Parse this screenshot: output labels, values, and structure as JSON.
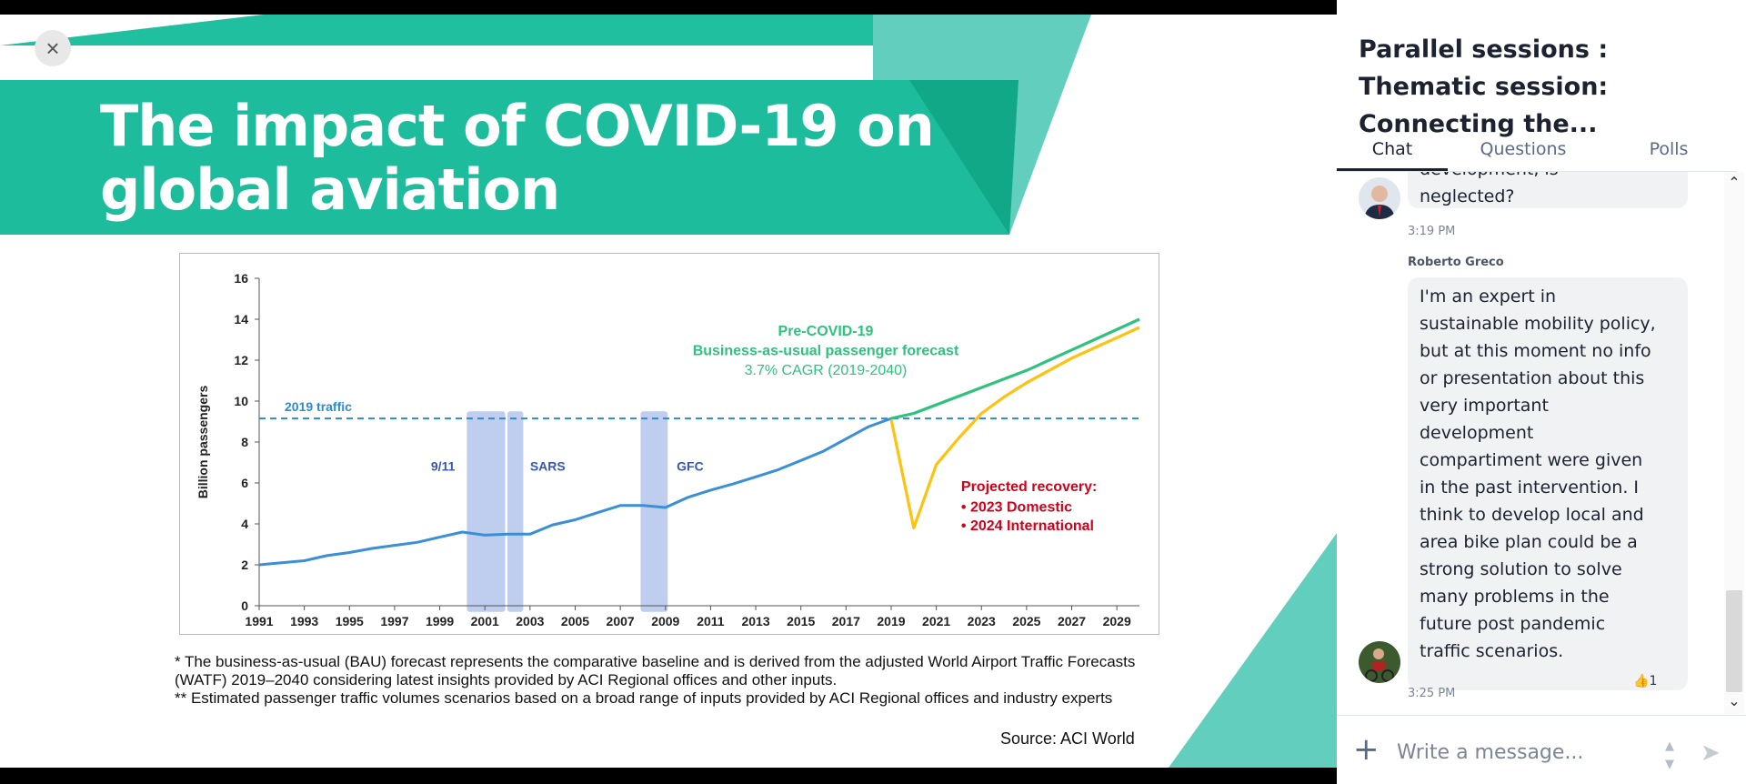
{
  "slide": {
    "close_label": "×",
    "title_line1": "The impact of COVID-19 on",
    "title_line2": "global aviation",
    "note1": "* The business-as-usual (BAU) forecast represents the comparative baseline and is derived from the adjusted World Airport Traffic Forecasts (WATF) 2019–2040 considering latest insights provided by ACI Regional offices and other inputs.",
    "note2": "** Estimated passenger traffic volumes scenarios based on a broad range of inputs provided by ACI Regional offices and industry experts",
    "source": "Source: ACI World",
    "colors": {
      "teal": "#1fbf9f",
      "teal_dark": "#11a887",
      "teal_light": "#62cfbe"
    }
  },
  "chart_data": {
    "type": "line",
    "ylabel": "Billion passengers",
    "xlabel": "",
    "ylim": [
      0,
      16
    ],
    "xlim": [
      1991,
      2030
    ],
    "y_ticks": [
      0,
      2,
      4,
      6,
      8,
      10,
      12,
      14,
      16
    ],
    "x_ticks": [
      1991,
      1993,
      1995,
      1997,
      1999,
      2001,
      2003,
      2005,
      2007,
      2009,
      2011,
      2013,
      2015,
      2017,
      2019,
      2021,
      2023,
      2025,
      2027,
      2029
    ],
    "series": [
      {
        "name": "Historical traffic",
        "color": "#3a8fd6",
        "x": [
          1991,
          1992,
          1993,
          1994,
          1995,
          1996,
          1997,
          1998,
          1999,
          2000,
          2001,
          2002,
          2003,
          2004,
          2005,
          2006,
          2007,
          2008,
          2009,
          2010,
          2011,
          2012,
          2013,
          2014,
          2015,
          2016,
          2017,
          2018,
          2019
        ],
        "values": [
          2.0,
          2.1,
          2.2,
          2.45,
          2.6,
          2.8,
          2.95,
          3.1,
          3.35,
          3.6,
          3.45,
          3.5,
          3.5,
          3.95,
          4.2,
          4.55,
          4.9,
          4.9,
          4.8,
          5.3,
          5.65,
          5.95,
          6.3,
          6.65,
          7.1,
          7.55,
          8.15,
          8.75,
          9.15
        ]
      },
      {
        "name": "Pre-COVID-19 Business-as-usual passenger forecast",
        "color": "#2ec27e",
        "x": [
          2019,
          2020,
          2025,
          2030
        ],
        "values": [
          9.15,
          9.4,
          11.5,
          14.0
        ]
      },
      {
        "name": "Projected recovery",
        "color": "#ffc20e",
        "x": [
          2019,
          2020,
          2021,
          2022,
          2023,
          2024,
          2025,
          2026,
          2027,
          2028,
          2029,
          2030
        ],
        "values": [
          9.1,
          3.8,
          6.9,
          8.2,
          9.4,
          10.2,
          10.9,
          11.5,
          12.1,
          12.6,
          13.1,
          13.6
        ]
      }
    ],
    "reference_line": {
      "label": "2019 traffic",
      "value": 9.15,
      "color": "#2b8bd6"
    },
    "shaded_periods": [
      {
        "label": "9/11",
        "start": 2000.2,
        "end": 2001.9
      },
      {
        "label": "SARS",
        "start": 2002.0,
        "end": 2002.7
      },
      {
        "label": "GFC",
        "start": 2007.9,
        "end": 2009.1
      }
    ],
    "annotations": {
      "precovid_line1": "Pre-COVID-19",
      "precovid_line2": "Business-as-usual passenger forecast",
      "precovid_line3": "3.7% CAGR (2019-2040)",
      "recovery_title": "Projected recovery:",
      "recovery_item1": "•  2023 Domestic",
      "recovery_item2": "•  2024 International"
    }
  },
  "panel": {
    "title": "Parallel sessions : Thematic session: Connecting the...",
    "tabs": [
      {
        "label": "Chat",
        "active": true
      },
      {
        "label": "Questions",
        "active": false
      },
      {
        "label": "Polls",
        "active": false
      }
    ],
    "messages": [
      {
        "text_partial": "development, is",
        "text_last": "neglected?",
        "time": "3:19 PM"
      },
      {
        "author": "Roberto Greco",
        "lines": [
          "I'm an expert in",
          "sustainable mobility policy,",
          "but at this moment no info",
          "or presentation about this",
          "very important",
          "development",
          "compartiment were given",
          "in the past intervention. I",
          "think to develop local and",
          "area bike plan could be a",
          "strong solution to solve",
          "many problems in the",
          "future post pandemic",
          "traffic scenarios."
        ],
        "time": "3:25 PM",
        "reaction_icon": "👍",
        "reaction_count": "1"
      }
    ],
    "composer": {
      "placeholder": "Write a message...",
      "plus_label": "+",
      "send_label": "➤"
    },
    "scroll_up": "⌃",
    "scroll_down": "⌄"
  }
}
